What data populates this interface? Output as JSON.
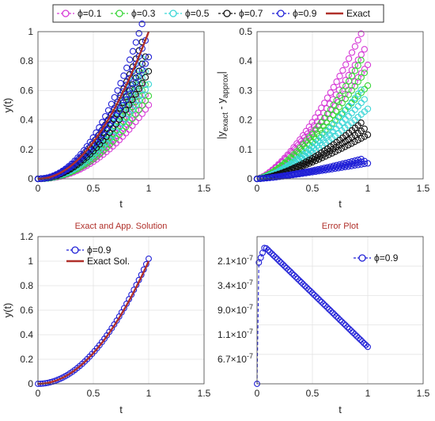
{
  "colors": {
    "phi01": "#d63ad6",
    "phi03": "#3ad63a",
    "phi05": "#3ad6d6",
    "phi07": "#111111",
    "phi09": "#1f1fd6",
    "exact": "#b0302a",
    "grid": "#e3e3e3",
    "axis": "#444444"
  },
  "legend_top": [
    {
      "label": "ϕ=0.1",
      "color": "#d63ad6",
      "style": "dash-circle"
    },
    {
      "label": "ϕ=0.3",
      "color": "#3ad63a",
      "style": "dash-circle"
    },
    {
      "label": "ϕ=0.5",
      "color": "#3ad6d6",
      "style": "dash-circle"
    },
    {
      "label": "ϕ=0.7",
      "color": "#111111",
      "style": "dash-circle"
    },
    {
      "label": "ϕ=0.9",
      "color": "#1f1fd6",
      "style": "dash-circle"
    },
    {
      "label": "Exact",
      "color": "#b0302a",
      "style": "solid"
    }
  ],
  "chart_data": [
    {
      "id": "top-left",
      "type": "line",
      "title": "",
      "xlabel": "t",
      "ylabel": "y(t)",
      "xlim": [
        0,
        1.5
      ],
      "ylim": [
        0,
        1
      ],
      "xticks": [
        "0",
        "0.5",
        "1",
        "1.5"
      ],
      "yticks": [
        "0",
        "0.2",
        "0.4",
        "0.6",
        "0.8",
        "1"
      ],
      "grid": true,
      "series": [
        {
          "name": "ϕ=0.1",
          "color": "#d63ad6",
          "style": "circles",
          "endpoint": 0.57,
          "power": 2.2
        },
        {
          "name": "ϕ=0.3",
          "color": "#3ad63a",
          "style": "circles",
          "endpoint": 0.64,
          "power": 2.15
        },
        {
          "name": "ϕ=0.5",
          "color": "#3ad6d6",
          "style": "circles",
          "endpoint": 0.73,
          "power": 2.1
        },
        {
          "name": "ϕ=0.7",
          "color": "#111111",
          "style": "circles",
          "endpoint": 0.83,
          "power": 2.05
        },
        {
          "name": "ϕ=0.9",
          "color": "#1f1fd6",
          "style": "circles",
          "endpoint": 0.94,
          "power": 2.0
        },
        {
          "name": "Exact",
          "color": "#b0302a",
          "style": "line",
          "endpoint": 1.0,
          "power": 2.0
        }
      ]
    },
    {
      "id": "top-right",
      "type": "line",
      "title": "",
      "xlabel": "t",
      "ylabel_main": "|y",
      "ylabel_sub1": "exact",
      "ylabel_mid": " - y",
      "ylabel_sub2": "approx",
      "ylabel_end": "|",
      "xlim": [
        0,
        1.5
      ],
      "ylim": [
        0,
        0.5
      ],
      "xticks": [
        "0",
        "0.5",
        "1",
        "1.5"
      ],
      "yticks": [
        "0",
        "0.1",
        "0.2",
        "0.3",
        "0.4",
        "0.5"
      ],
      "grid": true,
      "series": [
        {
          "name": "ϕ=0.1",
          "color": "#d63ad6",
          "style": "circles",
          "endpoint": 0.44,
          "power": 1.4
        },
        {
          "name": "ϕ=0.3",
          "color": "#3ad63a",
          "style": "circles",
          "endpoint": 0.36,
          "power": 1.45
        },
        {
          "name": "ϕ=0.5",
          "color": "#3ad6d6",
          "style": "circles",
          "endpoint": 0.27,
          "power": 1.5
        },
        {
          "name": "ϕ=0.7",
          "color": "#111111",
          "style": "circles",
          "endpoint": 0.17,
          "power": 1.5
        },
        {
          "name": "ϕ=0.9",
          "color": "#1f1fd6",
          "style": "circles",
          "endpoint": 0.06,
          "power": 1.3
        }
      ]
    },
    {
      "id": "bottom-left",
      "type": "line",
      "title": "Exact and App. Solution",
      "xlabel": "t",
      "ylabel": "y(t)",
      "xlim": [
        0,
        1.5
      ],
      "ylim": [
        0,
        1.2
      ],
      "xticks": [
        "0",
        "0.5",
        "1",
        "1.5"
      ],
      "yticks": [
        "0",
        "0.2",
        "0.4",
        "0.6",
        "0.8",
        "1",
        "1.2"
      ],
      "grid": true,
      "legend": [
        {
          "label": "ϕ=0.9",
          "color": "#1f1fd6",
          "style": "dash-circle"
        },
        {
          "label": "Exact Sol.",
          "color": "#b0302a",
          "style": "solid"
        }
      ],
      "series": [
        {
          "name": "ϕ=0.9",
          "color": "#1f1fd6",
          "style": "circles",
          "endpoint": 1.02,
          "power": 2.0
        },
        {
          "name": "Exact Sol.",
          "color": "#b0302a",
          "style": "line",
          "endpoint": 1.0,
          "power": 2.0
        }
      ]
    },
    {
      "id": "bottom-right",
      "type": "line",
      "title": "Error Plot",
      "xlabel": "t",
      "xlim": [
        0,
        1.5
      ],
      "xticks": [
        "0",
        "0.5",
        "1",
        "1.5"
      ],
      "ytick_labels": [
        {
          "base": "6.7",
          "exp": "-7"
        },
        {
          "base": "1.1",
          "exp": "-7"
        },
        {
          "base": "9.0",
          "exp": "-7"
        },
        {
          "base": "3.4",
          "exp": "-7"
        },
        {
          "base": "2.1",
          "exp": "-7"
        }
      ],
      "grid": true,
      "legend": [
        {
          "label": "ϕ=0.9",
          "color": "#1f1fd6",
          "style": "dash-circle"
        }
      ],
      "series": [
        {
          "name": "ϕ=0.9",
          "color": "#1f1fd6",
          "style": "circles-dashed"
        }
      ]
    }
  ]
}
